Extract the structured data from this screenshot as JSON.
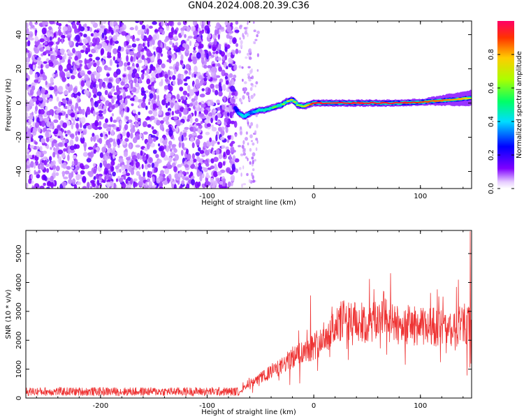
{
  "title": "GN04.2024.008.20.39.C36",
  "chart_data": [
    {
      "type": "heatmap",
      "xlabel": "Height of straight line (km)",
      "ylabel": "Frequency (Hz)",
      "xlim": [
        -270,
        148
      ],
      "ylim": [
        -50,
        48
      ],
      "xticks": [
        -200,
        -100,
        0,
        100
      ],
      "yticks": [
        -40,
        -20,
        0,
        20,
        40
      ],
      "grid": false,
      "description_values": {
        "noise_region_x": [
          -270,
          -72
        ],
        "sparse_noise_x": [
          -70,
          -52
        ],
        "tone_track": {
          "x": [
            -75,
            -70,
            -65,
            -60,
            -55,
            -50,
            -45,
            -40,
            -35,
            -30,
            -25,
            -20,
            -15,
            -10,
            -5,
            0,
            20,
            40,
            60,
            80,
            100,
            120,
            140,
            148
          ],
          "freq": [
            -2,
            -6,
            -8,
            -6,
            -5,
            -4,
            -4,
            -3,
            -2,
            -1,
            1,
            2,
            -1,
            -2,
            -1,
            0,
            0,
            0,
            0,
            0,
            0.5,
            1.5,
            2.5,
            3
          ],
          "amplitude": [
            0.15,
            0.35,
            0.4,
            0.35,
            0.4,
            0.45,
            0.5,
            0.55,
            0.6,
            0.55,
            0.6,
            0.65,
            0.6,
            0.7,
            0.8,
            0.95,
            0.95,
            0.95,
            0.95,
            0.95,
            0.9,
            0.85,
            0.8,
            0.7
          ]
        }
      },
      "colorbar": {
        "label": "Normalized spectral amplitude",
        "ticks": [
          "0.0",
          "0.2",
          "0.4",
          "0.6",
          "0.8"
        ],
        "range": [
          0,
          1
        ]
      }
    },
    {
      "type": "line",
      "xlabel": "Height of straight line (km)",
      "ylabel": "SNR (10 * v/v)",
      "xlim": [
        -270,
        148
      ],
      "ylim": [
        0,
        5800
      ],
      "xticks": [
        -200,
        -100,
        0,
        100
      ],
      "yticks": [
        0,
        1000,
        2000,
        3000,
        4000,
        5000
      ],
      "grid": false,
      "series": [
        {
          "color": "#ee3333",
          "envelope_x": [
            -270,
            -200,
            -100,
            -70,
            -60,
            -50,
            -40,
            -30,
            -20,
            -10,
            0,
            10,
            20,
            30,
            40,
            50,
            60,
            65,
            70,
            80,
            90,
            100,
            110,
            120,
            130,
            140,
            145,
            148
          ],
          "values": [
            250,
            250,
            250,
            250,
            450,
            700,
            900,
            1100,
            1400,
            1600,
            1800,
            2100,
            2500,
            2750,
            2600,
            2450,
            2700,
            3000,
            2600,
            2500,
            2550,
            2450,
            2500,
            2400,
            2300,
            2600,
            2500,
            2400
          ]
        }
      ]
    }
  ],
  "icons": {
    "colormap": "rainbow-jet-white-purple"
  }
}
